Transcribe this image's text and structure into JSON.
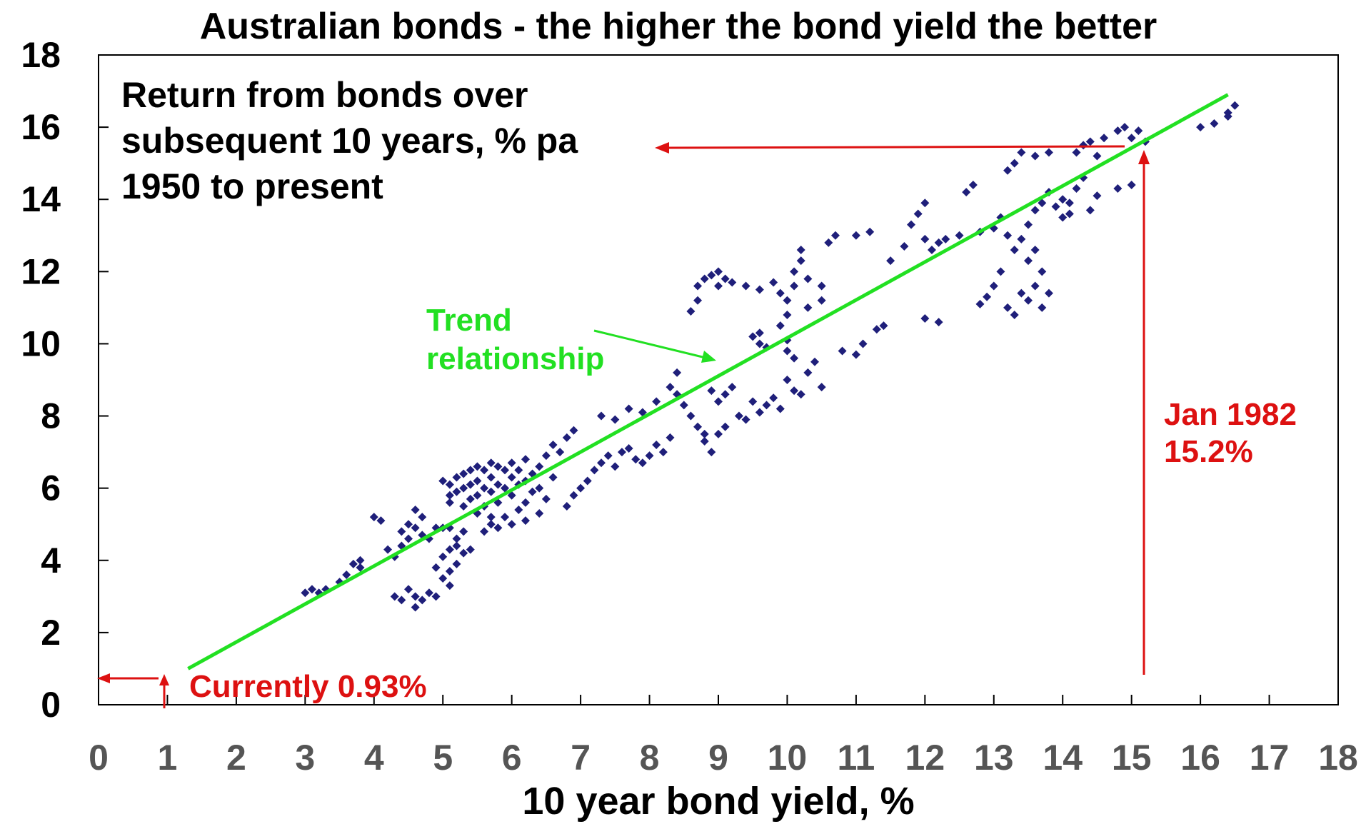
{
  "chart_data": {
    "type": "scatter",
    "title": "Australian bonds - the higher the bond yield the better",
    "xlabel": "10 year bond yield, %",
    "ylabel_lines": [
      "Return from bonds over",
      "subsequent 10 years, % pa",
      "1950 to present"
    ],
    "xlim": [
      0,
      18
    ],
    "ylim": [
      0,
      18
    ],
    "x_ticks": [
      "0",
      "1",
      "2",
      "3",
      "4",
      "5",
      "6",
      "7",
      "8",
      "9",
      "10",
      "11",
      "12",
      "13",
      "14",
      "15",
      "16",
      "17",
      "18"
    ],
    "y_ticks": [
      "0",
      "2",
      "4",
      "6",
      "8",
      "10",
      "12",
      "14",
      "16",
      "18"
    ],
    "grid": false,
    "colors": {
      "points": "#1f1f7a",
      "trend": "#22e022",
      "annotation": "#dd1111",
      "axis": "#000000"
    },
    "series": [
      {
        "kind": "scatter",
        "points": [
          [
            3.0,
            3.1
          ],
          [
            3.1,
            3.2
          ],
          [
            3.2,
            3.1
          ],
          [
            3.3,
            3.2
          ],
          [
            3.5,
            3.4
          ],
          [
            3.6,
            3.6
          ],
          [
            3.7,
            3.9
          ],
          [
            3.8,
            4.0
          ],
          [
            3.8,
            3.8
          ],
          [
            4.0,
            5.2
          ],
          [
            4.1,
            5.1
          ],
          [
            4.2,
            4.3
          ],
          [
            4.3,
            4.1
          ],
          [
            4.4,
            4.4
          ],
          [
            4.4,
            4.8
          ],
          [
            4.5,
            5.0
          ],
          [
            4.5,
            4.6
          ],
          [
            4.6,
            5.4
          ],
          [
            4.6,
            4.9
          ],
          [
            4.7,
            5.2
          ],
          [
            4.7,
            4.7
          ],
          [
            4.8,
            4.6
          ],
          [
            4.9,
            4.9
          ],
          [
            5.0,
            4.9
          ],
          [
            4.3,
            3.0
          ],
          [
            4.4,
            2.9
          ],
          [
            4.5,
            3.2
          ],
          [
            4.6,
            3.0
          ],
          [
            4.6,
            2.7
          ],
          [
            4.7,
            2.9
          ],
          [
            4.8,
            3.1
          ],
          [
            4.9,
            3.0
          ],
          [
            4.9,
            3.8
          ],
          [
            5.0,
            3.5
          ],
          [
            5.0,
            4.1
          ],
          [
            5.1,
            3.7
          ],
          [
            5.1,
            3.3
          ],
          [
            5.1,
            4.3
          ],
          [
            5.2,
            4.6
          ],
          [
            5.2,
            3.9
          ],
          [
            5.2,
            4.4
          ],
          [
            5.3,
            4.2
          ],
          [
            5.4,
            4.3
          ],
          [
            5.3,
            4.8
          ],
          [
            5.1,
            5.6
          ],
          [
            5.1,
            4.9
          ],
          [
            5.0,
            6.2
          ],
          [
            5.1,
            6.1
          ],
          [
            5.1,
            5.8
          ],
          [
            5.2,
            6.3
          ],
          [
            5.2,
            5.9
          ],
          [
            5.3,
            6.4
          ],
          [
            5.3,
            6.0
          ],
          [
            5.3,
            5.5
          ],
          [
            5.4,
            6.5
          ],
          [
            5.4,
            6.1
          ],
          [
            5.4,
            5.7
          ],
          [
            5.5,
            6.6
          ],
          [
            5.5,
            6.2
          ],
          [
            5.5,
            5.8
          ],
          [
            5.5,
            5.3
          ],
          [
            5.6,
            6.5
          ],
          [
            5.6,
            6.0
          ],
          [
            5.6,
            5.5
          ],
          [
            5.7,
            6.7
          ],
          [
            5.7,
            6.3
          ],
          [
            5.7,
            5.9
          ],
          [
            5.7,
            5.0
          ],
          [
            5.8,
            6.6
          ],
          [
            5.8,
            6.1
          ],
          [
            5.8,
            5.6
          ],
          [
            5.9,
            6.5
          ],
          [
            5.9,
            6.0
          ],
          [
            5.9,
            5.2
          ],
          [
            6.0,
            6.7
          ],
          [
            6.0,
            6.3
          ],
          [
            6.0,
            5.8
          ],
          [
            6.1,
            6.5
          ],
          [
            6.1,
            6.1
          ],
          [
            6.1,
            5.4
          ],
          [
            6.2,
            6.8
          ],
          [
            6.2,
            6.2
          ],
          [
            6.2,
            5.6
          ],
          [
            6.3,
            6.4
          ],
          [
            6.3,
            5.9
          ],
          [
            6.4,
            6.6
          ],
          [
            6.4,
            6.0
          ],
          [
            6.5,
            6.9
          ],
          [
            6.5,
            5.7
          ],
          [
            6.6,
            7.2
          ],
          [
            6.6,
            6.3
          ],
          [
            6.7,
            7.0
          ],
          [
            6.8,
            7.4
          ],
          [
            6.9,
            7.6
          ],
          [
            5.6,
            4.8
          ],
          [
            5.7,
            5.2
          ],
          [
            5.8,
            4.9
          ],
          [
            6.0,
            5.0
          ],
          [
            6.2,
            5.1
          ],
          [
            6.4,
            5.3
          ],
          [
            6.8,
            5.5
          ],
          [
            6.9,
            5.8
          ],
          [
            7.0,
            6.0
          ],
          [
            7.1,
            6.2
          ],
          [
            7.2,
            6.5
          ],
          [
            7.3,
            6.7
          ],
          [
            7.4,
            6.9
          ],
          [
            7.5,
            6.6
          ],
          [
            7.6,
            7.0
          ],
          [
            7.7,
            7.1
          ],
          [
            7.8,
            6.8
          ],
          [
            7.9,
            6.7
          ],
          [
            8.0,
            6.9
          ],
          [
            8.1,
            7.2
          ],
          [
            8.2,
            7.0
          ],
          [
            8.3,
            7.4
          ],
          [
            7.3,
            8.0
          ],
          [
            7.5,
            7.9
          ],
          [
            7.7,
            8.2
          ],
          [
            7.9,
            8.1
          ],
          [
            8.1,
            8.4
          ],
          [
            8.3,
            8.8
          ],
          [
            8.4,
            9.2
          ],
          [
            8.4,
            8.6
          ],
          [
            8.5,
            8.3
          ],
          [
            8.6,
            8.0
          ],
          [
            8.7,
            7.7
          ],
          [
            8.8,
            7.5
          ],
          [
            8.9,
            8.7
          ],
          [
            9.0,
            8.4
          ],
          [
            9.1,
            8.6
          ],
          [
            9.2,
            8.8
          ],
          [
            8.8,
            7.3
          ],
          [
            8.9,
            7.0
          ],
          [
            9.0,
            7.5
          ],
          [
            9.1,
            7.7
          ],
          [
            9.3,
            8.0
          ],
          [
            9.4,
            7.9
          ],
          [
            9.5,
            8.4
          ],
          [
            9.6,
            8.1
          ],
          [
            9.7,
            8.3
          ],
          [
            9.8,
            8.5
          ],
          [
            9.9,
            8.2
          ],
          [
            10.0,
            9.0
          ],
          [
            10.1,
            8.7
          ],
          [
            10.2,
            8.6
          ],
          [
            10.3,
            9.2
          ],
          [
            10.4,
            9.5
          ],
          [
            10.5,
            8.8
          ],
          [
            8.6,
            10.9
          ],
          [
            8.7,
            11.2
          ],
          [
            8.7,
            11.6
          ],
          [
            8.8,
            11.8
          ],
          [
            8.9,
            11.9
          ],
          [
            9.0,
            12.0
          ],
          [
            9.0,
            11.6
          ],
          [
            9.1,
            11.8
          ],
          [
            9.2,
            11.7
          ],
          [
            9.4,
            11.6
          ],
          [
            9.6,
            11.5
          ],
          [
            9.8,
            11.7
          ],
          [
            9.9,
            11.4
          ],
          [
            9.5,
            10.2
          ],
          [
            9.6,
            10.0
          ],
          [
            9.7,
            9.9
          ],
          [
            9.6,
            10.3
          ],
          [
            9.9,
            10.5
          ],
          [
            10.0,
            10.1
          ],
          [
            10.0,
            10.8
          ],
          [
            10.0,
            11.2
          ],
          [
            10.1,
            11.6
          ],
          [
            10.1,
            12.0
          ],
          [
            10.2,
            12.3
          ],
          [
            10.2,
            12.6
          ],
          [
            10.3,
            11.0
          ],
          [
            10.3,
            11.8
          ],
          [
            10.0,
            9.8
          ],
          [
            10.1,
            9.6
          ],
          [
            10.5,
            11.6
          ],
          [
            10.5,
            11.2
          ],
          [
            10.6,
            12.8
          ],
          [
            10.7,
            13.0
          ],
          [
            10.8,
            9.8
          ],
          [
            11.0,
            9.7
          ],
          [
            11.1,
            10.0
          ],
          [
            11.3,
            10.4
          ],
          [
            11.4,
            10.5
          ],
          [
            11.0,
            13.0
          ],
          [
            11.2,
            13.1
          ],
          [
            11.5,
            12.3
          ],
          [
            11.7,
            12.7
          ],
          [
            11.8,
            13.3
          ],
          [
            11.9,
            13.6
          ],
          [
            12.0,
            13.9
          ],
          [
            12.0,
            12.9
          ],
          [
            12.1,
            12.6
          ],
          [
            12.2,
            12.8
          ],
          [
            12.0,
            10.7
          ],
          [
            12.2,
            10.6
          ],
          [
            12.3,
            12.9
          ],
          [
            12.5,
            13.0
          ],
          [
            12.6,
            14.2
          ],
          [
            12.7,
            14.4
          ],
          [
            12.8,
            13.1
          ],
          [
            13.0,
            13.2
          ],
          [
            12.8,
            11.1
          ],
          [
            12.9,
            11.3
          ],
          [
            13.0,
            11.6
          ],
          [
            13.1,
            12.0
          ],
          [
            13.1,
            13.5
          ],
          [
            13.2,
            13.0
          ],
          [
            13.2,
            14.8
          ],
          [
            13.3,
            15.0
          ],
          [
            13.3,
            12.6
          ],
          [
            13.4,
            12.9
          ],
          [
            13.4,
            15.3
          ],
          [
            13.5,
            13.3
          ],
          [
            13.2,
            11.0
          ],
          [
            13.3,
            10.8
          ],
          [
            13.4,
            11.4
          ],
          [
            13.5,
            11.2
          ],
          [
            13.6,
            11.6
          ],
          [
            13.7,
            11.0
          ],
          [
            13.8,
            11.4
          ],
          [
            13.5,
            12.3
          ],
          [
            13.6,
            12.6
          ],
          [
            13.7,
            12.0
          ],
          [
            13.6,
            13.7
          ],
          [
            13.7,
            13.9
          ],
          [
            13.8,
            14.2
          ],
          [
            13.9,
            13.8
          ],
          [
            14.0,
            13.5
          ],
          [
            14.0,
            14.0
          ],
          [
            14.1,
            13.6
          ],
          [
            14.1,
            13.9
          ],
          [
            14.2,
            14.3
          ],
          [
            14.3,
            14.6
          ],
          [
            14.4,
            13.7
          ],
          [
            13.8,
            15.3
          ],
          [
            13.6,
            15.2
          ],
          [
            14.2,
            15.3
          ],
          [
            14.3,
            15.5
          ],
          [
            14.4,
            15.6
          ],
          [
            14.5,
            15.2
          ],
          [
            14.6,
            15.7
          ],
          [
            14.8,
            15.9
          ],
          [
            14.9,
            16.0
          ],
          [
            15.0,
            15.7
          ],
          [
            15.1,
            15.9
          ],
          [
            15.0,
            14.4
          ],
          [
            14.8,
            14.3
          ],
          [
            14.5,
            14.1
          ],
          [
            15.2,
            15.6
          ],
          [
            16.0,
            16.0
          ],
          [
            16.2,
            16.1
          ],
          [
            16.4,
            16.4
          ],
          [
            16.5,
            16.6
          ],
          [
            16.4,
            16.3
          ]
        ]
      },
      {
        "kind": "line",
        "name": "Trend relationship",
        "x": [
          1.3,
          16.4
        ],
        "y": [
          1.0,
          16.9
        ]
      }
    ],
    "annotations": [
      {
        "id": "trend",
        "lines": [
          "Trend",
          "relationship"
        ],
        "color": "#22e022"
      },
      {
        "id": "jan1982",
        "lines": [
          "Jan 1982",
          "15.2%"
        ],
        "color": "#dd1111",
        "x": 15.2,
        "y": 15.5
      },
      {
        "id": "current",
        "lines": [
          "Currently 0.93%"
        ],
        "color": "#dd1111",
        "x": 0.93,
        "y": 0.8
      }
    ]
  }
}
